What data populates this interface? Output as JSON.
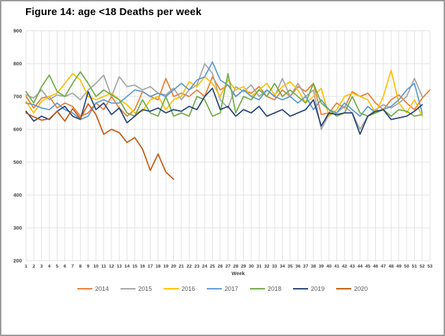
{
  "chart_data": {
    "type": "line",
    "title": "Figure 14: age <18 Deaths per week",
    "xlabel": "Week",
    "ylabel": "",
    "ylim": [
      200,
      900
    ],
    "y_ticks": [
      900,
      800,
      700,
      600,
      500,
      400,
      300,
      200
    ],
    "x_ticks": [
      1,
      2,
      3,
      4,
      5,
      6,
      7,
      8,
      9,
      10,
      11,
      12,
      13,
      14,
      15,
      16,
      17,
      18,
      19,
      20,
      21,
      22,
      23,
      24,
      25,
      26,
      27,
      28,
      29,
      30,
      31,
      32,
      33,
      34,
      35,
      36,
      37,
      38,
      39,
      40,
      41,
      42,
      43,
      44,
      45,
      46,
      47,
      48,
      49,
      50,
      51,
      52,
      53
    ],
    "x_max": 53,
    "grid": true,
    "gridline_color": "#d9d9d9",
    "tick_label_color": "#3f3f3f",
    "legend_position": "bottom",
    "series": [
      {
        "name": "2014",
        "color": "#ED7D31",
        "values": [
          700,
          665,
          695,
          700,
          665,
          680,
          670,
          640,
          650,
          680,
          660,
          700,
          665,
          640,
          660,
          715,
          700,
          690,
          755,
          700,
          710,
          700,
          720,
          700,
          760,
          720,
          735,
          700,
          720,
          710,
          730,
          700,
          690,
          720,
          700,
          730,
          715,
          740,
          645,
          650,
          680,
          665,
          715,
          700,
          710,
          680,
          660,
          690,
          705,
          680,
          660,
          695,
          720
        ]
      },
      {
        "name": "2015",
        "color": "#A5A5A5",
        "values": [
          705,
          695,
          720,
          690,
          705,
          700,
          710,
          690,
          720,
          740,
          765,
          700,
          760,
          730,
          735,
          720,
          730,
          710,
          705,
          725,
          690,
          720,
          735,
          800,
          770,
          690,
          665,
          730,
          715,
          735,
          700,
          720,
          700,
          755,
          700,
          740,
          700,
          720,
          600,
          645,
          650,
          670,
          650,
          600,
          640,
          660,
          675,
          665,
          680,
          700,
          755,
          700
        ]
      },
      {
        "name": "2016",
        "color": "#FFC000",
        "values": [
          685,
          650,
          685,
          700,
          710,
          740,
          770,
          750,
          700,
          690,
          700,
          710,
          690,
          675,
          650,
          655,
          690,
          700,
          660,
          690,
          700,
          745,
          730,
          760,
          740,
          700,
          750,
          720,
          730,
          700,
          720,
          740,
          705,
          730,
          745,
          720,
          680,
          700,
          725,
          640,
          660,
          700,
          710,
          700,
          690,
          650,
          700,
          780,
          680,
          650,
          690,
          640
        ]
      },
      {
        "name": "2017",
        "color": "#5B9BD5",
        "values": [
          680,
          675,
          665,
          660,
          680,
          660,
          650,
          630,
          640,
          680,
          690,
          680,
          680,
          700,
          720,
          715,
          700,
          710,
          700,
          720,
          740,
          720,
          750,
          760,
          805,
          750,
          735,
          700,
          720,
          700,
          690,
          720,
          700,
          690,
          700,
          680,
          700,
          660,
          690,
          660,
          650,
          680,
          660,
          640,
          670,
          650,
          660,
          670,
          690,
          720,
          740,
          650
        ]
      },
      {
        "name": "2018",
        "color": "#70AD47",
        "values": [
          715,
          680,
          730,
          765,
          715,
          700,
          740,
          775,
          740,
          700,
          720,
          705,
          690,
          650,
          640,
          690,
          650,
          640,
          700,
          640,
          650,
          640,
          700,
          690,
          640,
          650,
          770,
          650,
          700,
          690,
          720,
          700,
          740,
          700,
          720,
          700,
          680,
          740,
          680,
          660,
          640,
          650,
          700,
          650,
          640,
          650,
          660,
          640,
          660,
          655,
          640,
          645
        ]
      },
      {
        "name": "2019",
        "color": "#264478",
        "values": [
          655,
          625,
          640,
          630,
          655,
          670,
          640,
          630,
          715,
          660,
          680,
          645,
          665,
          620,
          640,
          660,
          655,
          665,
          650,
          660,
          655,
          670,
          660,
          700,
          725,
          660,
          670,
          640,
          660,
          650,
          670,
          640,
          650,
          660,
          640,
          650,
          660,
          690,
          610,
          650,
          645,
          650,
          650,
          585,
          640,
          655,
          660,
          630,
          635,
          640,
          655,
          675
        ]
      },
      {
        "name": "2020",
        "color": "#C55A11",
        "values": [
          650,
          638,
          628,
          632,
          655,
          625,
          663,
          632,
          678,
          645,
          585,
          600,
          590,
          560,
          575,
          540,
          475,
          525,
          470,
          448
        ]
      }
    ]
  }
}
